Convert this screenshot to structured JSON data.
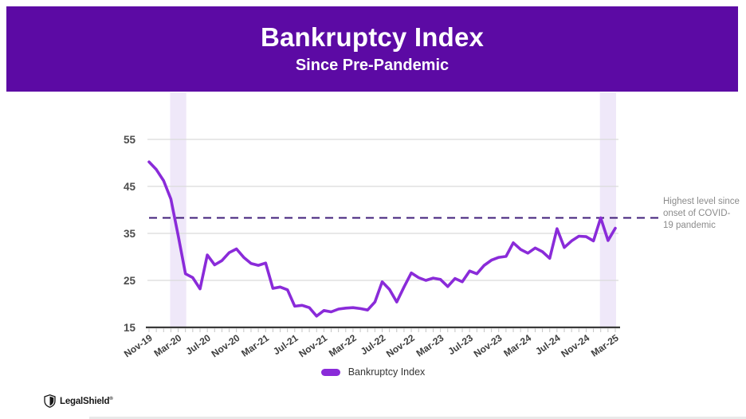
{
  "header": {
    "title": "Bankruptcy Index",
    "subtitle": "Since Pre-Pandemic",
    "bg_color": "#5C0AA4"
  },
  "annotation": {
    "text": "Highest level since onset of COVID-19 pandemic"
  },
  "legend": {
    "label": "Bankruptcy Index",
    "swatch_color": "#8A2BD9"
  },
  "footer": {
    "brand": "LegalShield",
    "trademark": "®"
  },
  "chart_data": {
    "type": "line",
    "title": "Bankruptcy Index Since Pre-Pandemic",
    "x": [
      "Nov-19",
      "Dec-19",
      "Jan-20",
      "Feb-20",
      "Mar-20",
      "Apr-20",
      "May-20",
      "Jun-20",
      "Jul-20",
      "Aug-20",
      "Sep-20",
      "Oct-20",
      "Nov-20",
      "Dec-20",
      "Jan-21",
      "Feb-21",
      "Mar-21",
      "Apr-21",
      "May-21",
      "Jun-21",
      "Jul-21",
      "Aug-21",
      "Sep-21",
      "Oct-21",
      "Nov-21",
      "Dec-21",
      "Jan-22",
      "Feb-22",
      "Mar-22",
      "Apr-22",
      "May-22",
      "Jun-22",
      "Jul-22",
      "Aug-22",
      "Sep-22",
      "Oct-22",
      "Nov-22",
      "Dec-22",
      "Jan-23",
      "Feb-23",
      "Mar-23",
      "Apr-23",
      "May-23",
      "Jun-23",
      "Jul-23",
      "Aug-23",
      "Sep-23",
      "Oct-23",
      "Nov-23",
      "Dec-23",
      "Jan-24",
      "Feb-24",
      "Mar-24",
      "Apr-24",
      "May-24",
      "Jun-24",
      "Jul-24",
      "Aug-24",
      "Sep-24",
      "Oct-24",
      "Nov-24",
      "Dec-24",
      "Jan-25",
      "Feb-25",
      "Mar-25"
    ],
    "x_tick_labels_shown": [
      "Nov-19",
      "Mar-20",
      "Jul-20",
      "Nov-20",
      "Mar-21",
      "Jul-21",
      "Nov-21",
      "Mar-22",
      "Jul-22",
      "Nov-22",
      "Mar-23",
      "Jul-23",
      "Nov-23",
      "Mar-24",
      "Jul-24",
      "Nov-24",
      "Mar-25"
    ],
    "series": [
      {
        "name": "Bankruptcy Index",
        "color": "#8A2BD9",
        "values": [
          50.2,
          48.6,
          46.2,
          42.3,
          34.5,
          26.4,
          25.6,
          23.2,
          30.4,
          28.3,
          29.2,
          30.9,
          31.7,
          29.9,
          28.6,
          28.2,
          28.7,
          23.3,
          23.6,
          23.0,
          19.5,
          19.7,
          19.2,
          17.4,
          18.6,
          18.3,
          18.9,
          19.1,
          19.2,
          19.0,
          18.7,
          20.4,
          24.7,
          23.1,
          20.4,
          23.6,
          26.6,
          25.6,
          25.0,
          25.5,
          25.2,
          23.7,
          25.4,
          24.7,
          27.0,
          26.4,
          28.2,
          29.3,
          29.9,
          30.1,
          33.0,
          31.6,
          30.8,
          31.9,
          31.1,
          29.7,
          36.0,
          32.0,
          33.4,
          34.4,
          34.3,
          33.4,
          38.3,
          33.5,
          36.1
        ]
      }
    ],
    "y_ticks": [
      15,
      25,
      35,
      45,
      55
    ],
    "ylim": [
      15,
      57
    ],
    "grid": "horizontal",
    "legend_position": "bottom",
    "reference_line": {
      "value": 38.3,
      "style": "dashed",
      "color": "#3F1D78",
      "label": "Highest level since onset of COVID-19 pandemic"
    },
    "highlight_bands": [
      {
        "from": "Feb-20",
        "to": "Apr-20",
        "color": "#EFE8F9"
      },
      {
        "from": "Jan-25",
        "to": "Mar-25",
        "color": "#EFE8F9"
      }
    ],
    "colors": {
      "grid": "#DBDBDB",
      "axis": "#3A3A3A",
      "tick": "#C4C4C4",
      "band": "#EFE8F9"
    }
  }
}
